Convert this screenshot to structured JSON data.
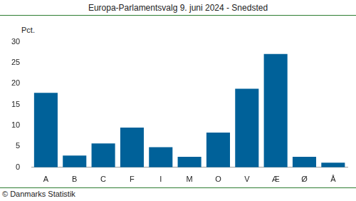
{
  "chart_data": {
    "type": "bar",
    "title": "Europa-Parlamentsvalg 9. juni 2024 - Snedsted",
    "ylabel": "Pct.",
    "source": "© Danmarks Statistik",
    "categories": [
      "A",
      "B",
      "C",
      "F",
      "I",
      "M",
      "O",
      "V",
      "Æ",
      "Ø",
      "Å"
    ],
    "values": [
      17.8,
      2.8,
      5.7,
      9.5,
      4.8,
      2.5,
      8.3,
      18.8,
      27.1,
      2.5,
      1.1
    ],
    "color": "#006199",
    "ylim": [
      0,
      30
    ],
    "yticks": [
      0,
      5,
      10,
      15,
      20,
      25,
      30
    ],
    "grid": false
  }
}
